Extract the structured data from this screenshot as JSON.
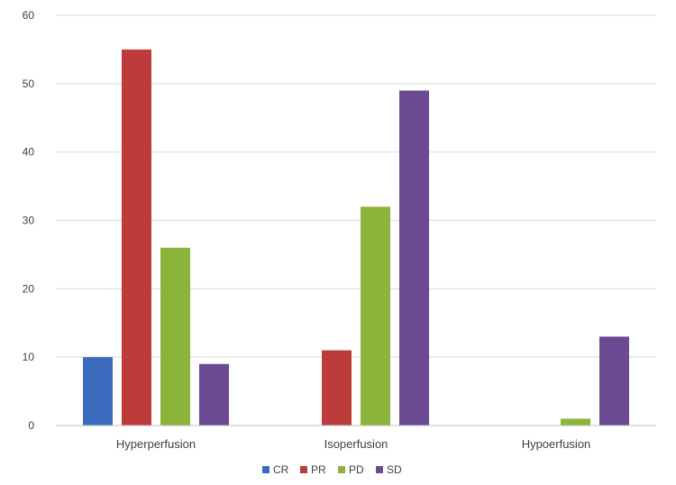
{
  "chart_data": {
    "type": "bar",
    "title": "",
    "xlabel": "",
    "ylabel": "",
    "categories": [
      "Hyperperfusion",
      "Isoperfusion",
      "Hypoerfusion"
    ],
    "series": [
      {
        "name": "CR",
        "color": "#3a6bbd",
        "values": [
          10,
          0,
          0
        ]
      },
      {
        "name": "PR",
        "color": "#bd3b3b",
        "values": [
          55,
          11,
          0
        ]
      },
      {
        "name": "PD",
        "color": "#8cb43a",
        "values": [
          26,
          32,
          1
        ]
      },
      {
        "name": "SD",
        "color": "#6b4a91",
        "values": [
          9,
          49,
          13
        ]
      }
    ],
    "ylim": [
      0,
      60
    ],
    "yticks": [
      0,
      10,
      20,
      30,
      40,
      50,
      60
    ],
    "grid": true,
    "legend": "bottom-center"
  }
}
